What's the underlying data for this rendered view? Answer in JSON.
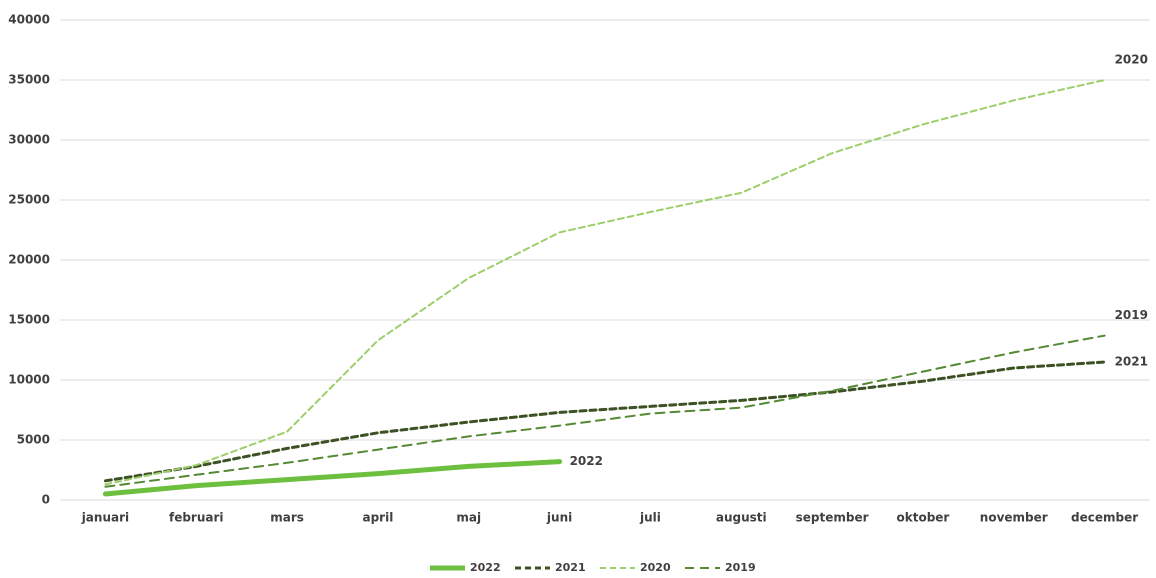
{
  "chart_data": {
    "type": "line",
    "categories": [
      "januari",
      "februari",
      "mars",
      "april",
      "maj",
      "juni",
      "juli",
      "augusti",
      "september",
      "oktober",
      "november",
      "december"
    ],
    "series": [
      {
        "name": "2022",
        "color": "#6cbf3f",
        "width": 5,
        "dash": "none",
        "values": [
          500,
          1200,
          1700,
          2200,
          2800,
          3200,
          null,
          null,
          null,
          null,
          null,
          null
        ]
      },
      {
        "name": "2021",
        "color": "#3d5224",
        "width": 3,
        "dash": "6 4",
        "values": [
          1600,
          2800,
          4300,
          5600,
          6500,
          7300,
          7800,
          8300,
          9000,
          9900,
          11000,
          11500
        ]
      },
      {
        "name": "2020",
        "color": "#9ccf6a",
        "width": 2,
        "dash": "6 4",
        "values": [
          1300,
          2900,
          5700,
          13300,
          18500,
          22300,
          24000,
          25600,
          28900,
          31300,
          33300,
          35000
        ]
      },
      {
        "name": "2019",
        "color": "#548a34",
        "width": 2,
        "dash": "9 6",
        "values": [
          1100,
          2100,
          3100,
          4200,
          5300,
          6200,
          7200,
          7700,
          9100,
          10700,
          12300,
          13700
        ]
      }
    ],
    "ylim": [
      0,
      40000
    ],
    "yticks": [
      0,
      5000,
      10000,
      15000,
      20000,
      25000,
      30000,
      35000,
      40000
    ],
    "grid": true,
    "legend": "bottom"
  }
}
